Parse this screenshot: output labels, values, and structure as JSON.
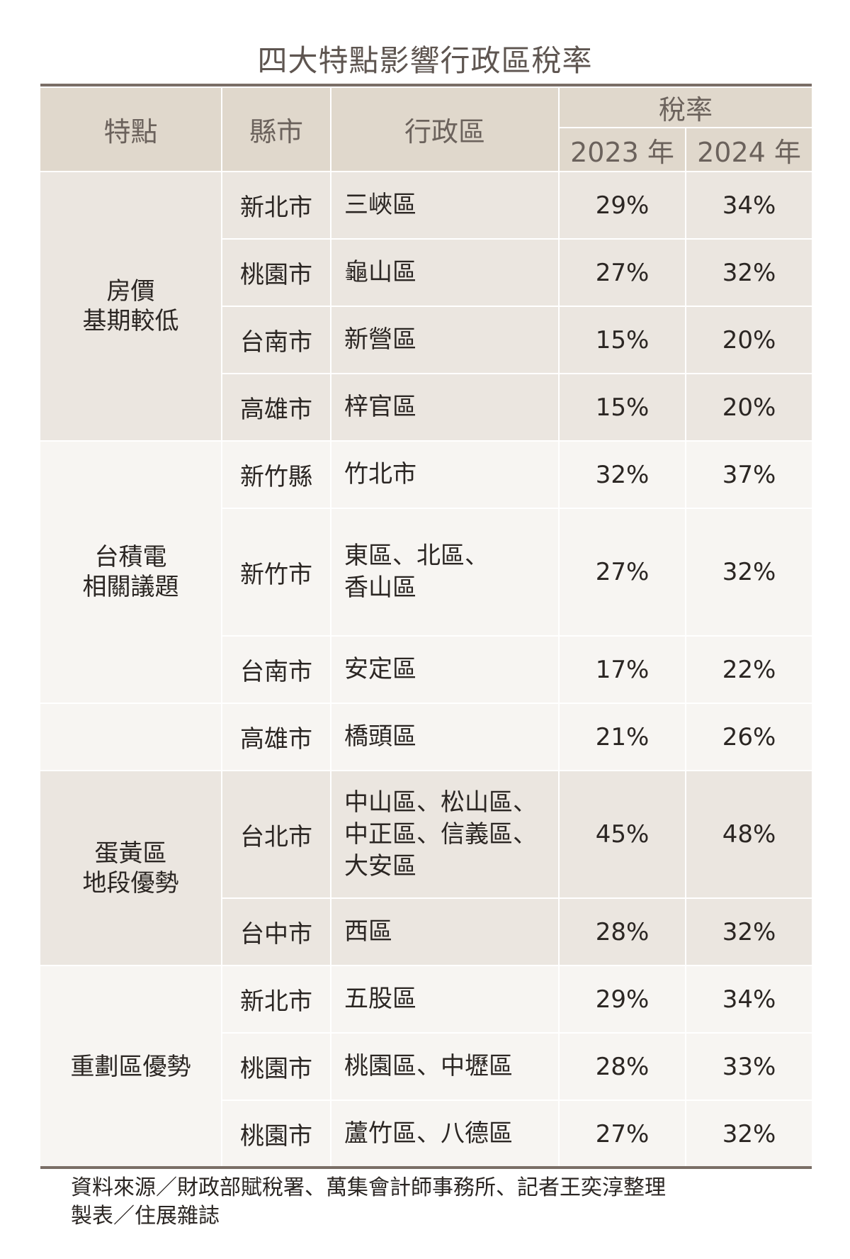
{
  "title": "四大特點影響行政區稅率",
  "header": {
    "feature": "特點",
    "county": "縣市",
    "district": "行政區",
    "tax_rate": "稅率",
    "year_2023": "2023 年",
    "year_2024": "2024 年"
  },
  "groups": [
    {
      "label": "房價\n基期較低",
      "shade": "dark",
      "rows": [
        {
          "county": "新北市",
          "district": "三峽區",
          "rate_2023": "29%",
          "rate_2024": "34%"
        },
        {
          "county": "桃園市",
          "district": "龜山區",
          "rate_2023": "27%",
          "rate_2024": "32%"
        },
        {
          "county": "台南市",
          "district": "新營區",
          "rate_2023": "15%",
          "rate_2024": "20%"
        },
        {
          "county": "高雄市",
          "district": "梓官區",
          "rate_2023": "15%",
          "rate_2024": "20%"
        }
      ]
    },
    {
      "label": "台積電\n相關議題",
      "shade": "light",
      "rows": [
        {
          "county": "新竹縣",
          "district": "竹北市",
          "rate_2023": "32%",
          "rate_2024": "37%"
        },
        {
          "county": "新竹市",
          "district": "東區、北區、\n香山區",
          "rate_2023": "27%",
          "rate_2024": "32%",
          "tall": true
        },
        {
          "county": "台南市",
          "district": "安定區",
          "rate_2023": "17%",
          "rate_2024": "22%"
        }
      ]
    },
    {
      "label": "",
      "shade": "light",
      "rows": [
        {
          "county": "高雄市",
          "district": "橋頭區",
          "rate_2023": "21%",
          "rate_2024": "26%"
        }
      ]
    },
    {
      "label": "蛋黃區\n地段優勢",
      "shade": "dark",
      "rows": [
        {
          "county": "台北市",
          "district": "中山區、松山區、\n中正區、信義區、\n大安區",
          "rate_2023": "45%",
          "rate_2024": "48%",
          "tall": true
        },
        {
          "county": "台中市",
          "district": "西區",
          "rate_2023": "28%",
          "rate_2024": "32%"
        }
      ]
    },
    {
      "label": "重劃區優勢",
      "shade": "light",
      "rows": [
        {
          "county": "新北市",
          "district": "五股區",
          "rate_2023": "29%",
          "rate_2024": "34%"
        },
        {
          "county": "桃園市",
          "district": "桃園區、中壢區",
          "rate_2023": "28%",
          "rate_2024": "33%"
        },
        {
          "county": "桃園市",
          "district": "蘆竹區、八德區",
          "rate_2023": "27%",
          "rate_2024": "32%"
        }
      ]
    }
  ],
  "footnote": {
    "source": "資料來源／財政部賦稅署、萬集會計師事務所、記者王奕淳整理",
    "credit": "製表／住展雜誌"
  },
  "colors": {
    "header_bg": "#e0d8cc",
    "dark_row": "#ebe6e0",
    "light_row": "#f7f5f2",
    "rule": "#7a6e66"
  }
}
